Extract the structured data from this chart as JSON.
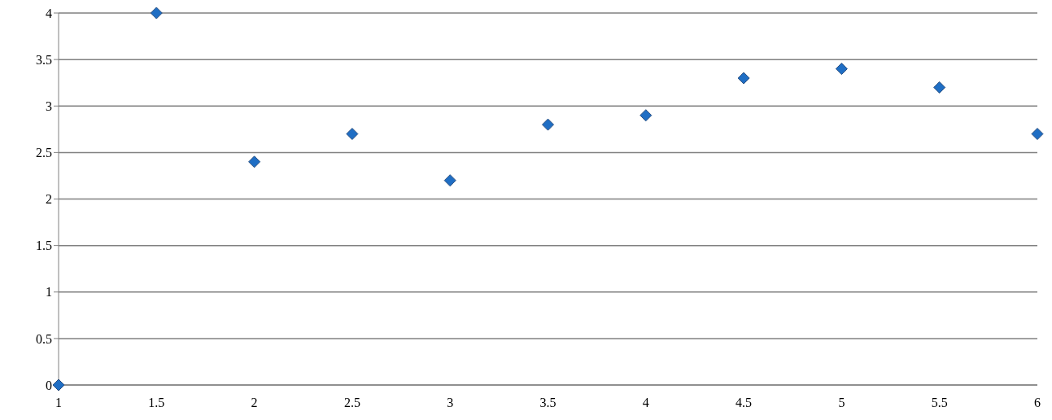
{
  "chart_data": {
    "type": "scatter",
    "x": [
      1,
      1.5,
      2,
      2.5,
      3,
      3.5,
      4,
      4.5,
      5,
      5.5,
      6
    ],
    "series": [
      {
        "color": "#1f6ec4",
        "values": [
          0,
          4,
          2.4,
          2.7,
          2.2,
          2.8,
          2.9,
          3.3,
          3.4,
          3.2,
          2.7
        ]
      }
    ],
    "xlim": [
      1,
      6
    ],
    "xticks": [
      1,
      1.5,
      2,
      2.5,
      3,
      3.5,
      4,
      4.5,
      5,
      5.5,
      6
    ],
    "ylim": [
      0,
      4
    ],
    "yticks": [
      0,
      0.5,
      1,
      1.5,
      2,
      2.5,
      3,
      3.5,
      4
    ],
    "grid": "y",
    "marker": "diamond",
    "legend": false
  }
}
